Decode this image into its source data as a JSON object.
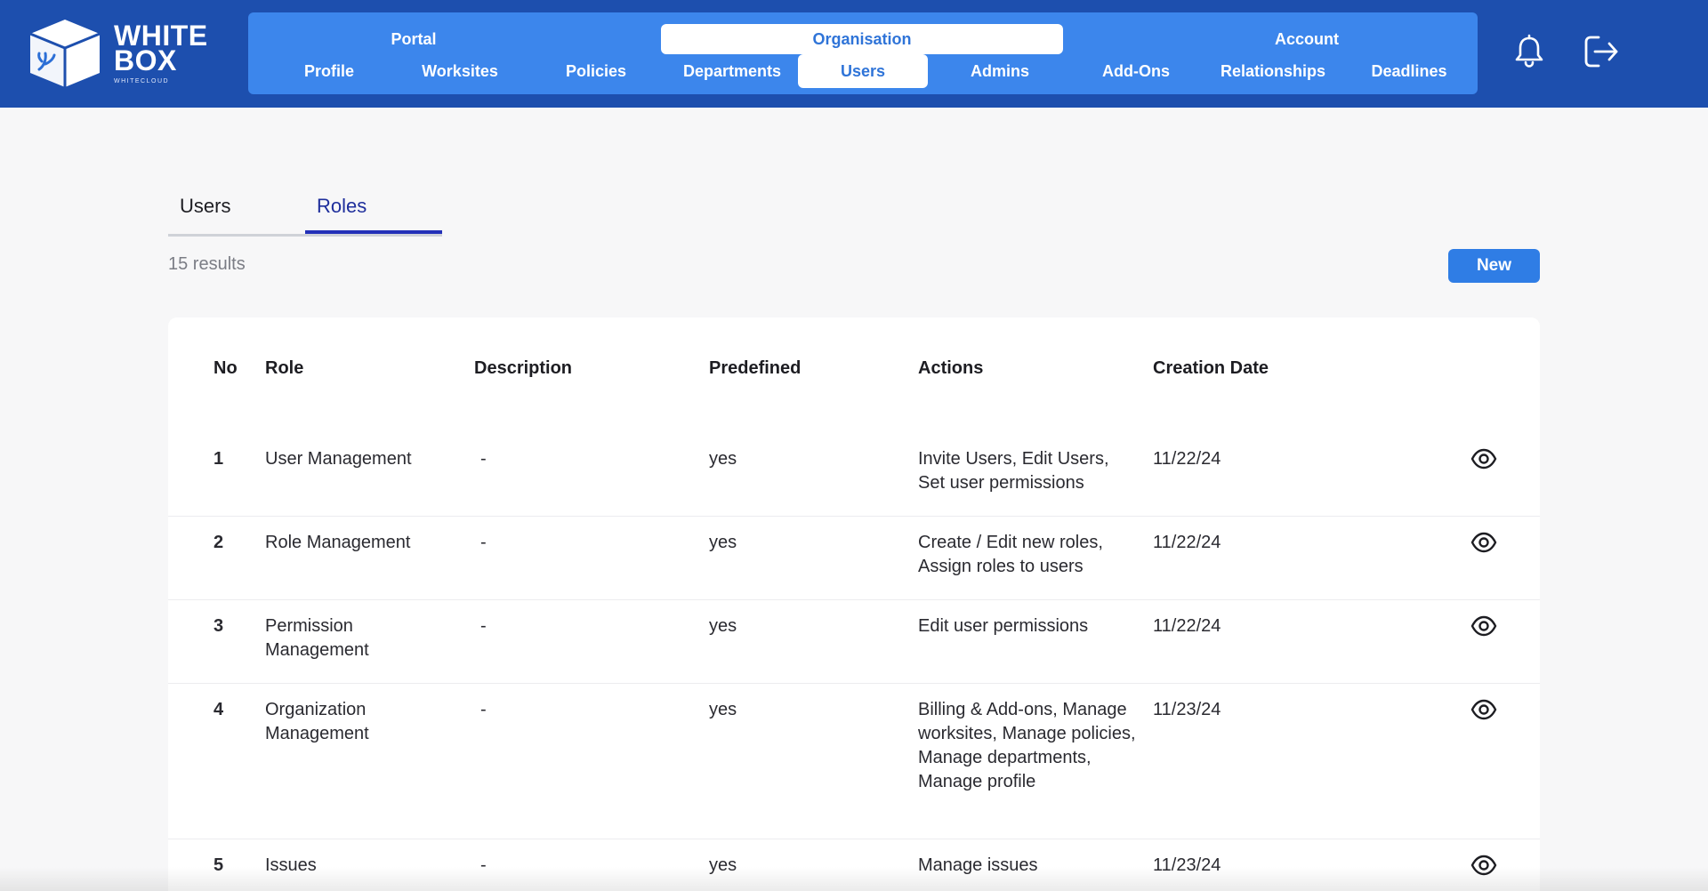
{
  "brand": {
    "line1": "WHITE",
    "line2": "BOX",
    "sub": "WHITECLOUD"
  },
  "nav": {
    "groups": [
      {
        "label": "Portal"
      },
      {
        "label": "Organisation"
      },
      {
        "label": "Account"
      }
    ],
    "items": [
      {
        "label": "Profile"
      },
      {
        "label": "Worksites"
      },
      {
        "label": "Policies"
      },
      {
        "label": "Departments"
      },
      {
        "label": "Users"
      },
      {
        "label": "Admins"
      },
      {
        "label": "Add-Ons"
      },
      {
        "label": "Relationships"
      },
      {
        "label": "Deadlines"
      }
    ],
    "active_group": "Organisation",
    "active_item": "Users"
  },
  "header_icons": [
    "bell-icon",
    "logout-icon"
  ],
  "tabs": [
    {
      "label": "Users"
    },
    {
      "label": "Roles"
    }
  ],
  "active_tab": "Roles",
  "results_text": "15 results",
  "new_button": "New",
  "table": {
    "headers": {
      "no": "No",
      "role": "Role",
      "description": "Description",
      "predefined": "Predefined",
      "actions": "Actions",
      "created": "Creation Date"
    },
    "rows": [
      {
        "no": "1",
        "role": "User Management",
        "description": "-",
        "predefined": "yes",
        "actions": "Invite Users, Edit Users, Set user permissions",
        "created": "11/22/24"
      },
      {
        "no": "2",
        "role": "Role Management",
        "description": "-",
        "predefined": "yes",
        "actions": "Create / Edit new roles, Assign roles to users",
        "created": "11/22/24"
      },
      {
        "no": "3",
        "role": "Permission Management",
        "description": "-",
        "predefined": "yes",
        "actions": "Edit user permissions",
        "created": "11/22/24"
      },
      {
        "no": "4",
        "role": "Organization Management",
        "description": "-",
        "predefined": "yes",
        "actions": "Billing & Add-ons, Manage worksites, Manage policies, Manage departments, Manage profile",
        "created": "11/23/24"
      },
      {
        "no": "5",
        "role": "Issues",
        "description": "-",
        "predefined": "yes",
        "actions": "Manage issues",
        "created": "11/23/24"
      }
    ]
  },
  "colors": {
    "header_bg": "#1d4fae",
    "nav_panel": "#3c86ec",
    "active_text": "#2f74d8",
    "tab_active": "#2330b8",
    "button": "#2f7de5"
  }
}
